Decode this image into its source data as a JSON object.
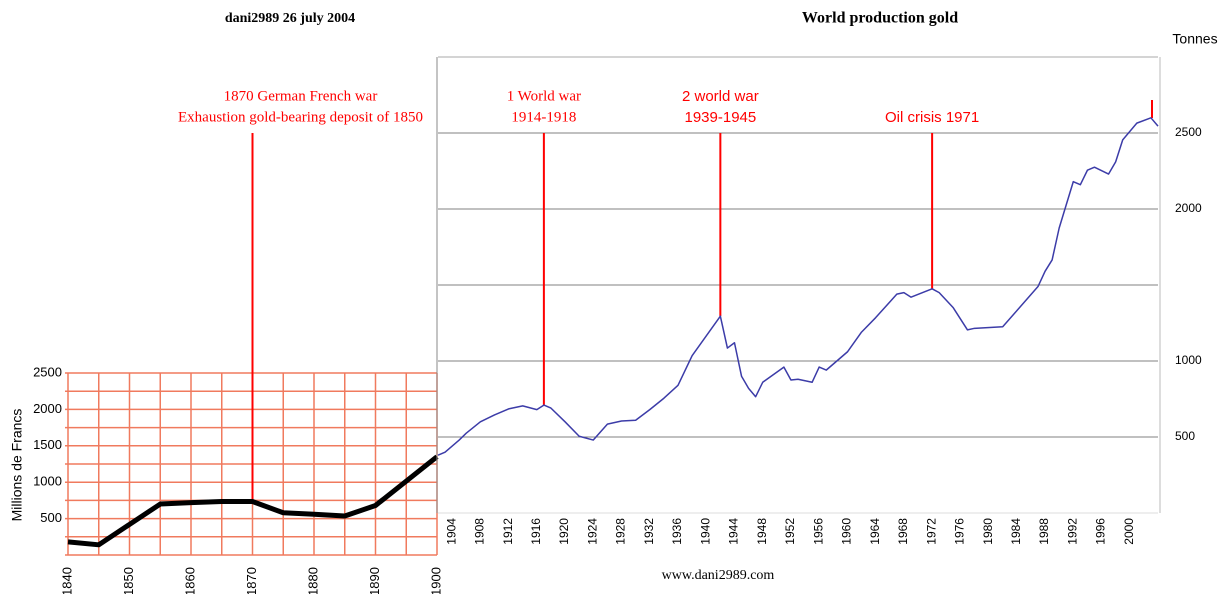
{
  "author": "dani2989  26 july 2004",
  "footer": "www.dani2989.com",
  "chart_data": [
    {
      "type": "line",
      "ylabel": "Millions de Francs",
      "x": [
        1840,
        1845,
        1850,
        1855,
        1860,
        1865,
        1870,
        1875,
        1880,
        1885,
        1890,
        1900
      ],
      "values": [
        180,
        140,
        420,
        700,
        720,
        735,
        735,
        580,
        560,
        535,
        680,
        1350
      ],
      "color": "#000000",
      "xlim": [
        1840,
        1900
      ],
      "xticks": [
        1840,
        1850,
        1860,
        1870,
        1880,
        1890,
        1900
      ],
      "ylim": [
        0,
        2500
      ],
      "yticks": [
        500,
        1000,
        1500,
        2000,
        2500
      ],
      "grid": true,
      "grid_color": "#f07a5e",
      "annotations": [
        {
          "x": 1870,
          "text": [
            "1870 German French war",
            "Exhaustion gold-bearing deposit of 1850"
          ],
          "color": "#ff0000"
        }
      ]
    },
    {
      "type": "line",
      "title": "World production gold",
      "ylabel": "Tonnes",
      "x": [
        1902,
        1903,
        1905,
        1906,
        1908,
        1910,
        1912,
        1914,
        1916,
        1917,
        1918,
        1920,
        1922,
        1924,
        1926,
        1928,
        1930,
        1932,
        1934,
        1936,
        1938,
        1942,
        1943,
        1944,
        1945,
        1946,
        1947,
        1948,
        1951,
        1952,
        1953,
        1955,
        1956,
        1957,
        1960,
        1962,
        1964,
        1967,
        1968,
        1969,
        1972,
        1973,
        1975,
        1977,
        1978,
        1982,
        1987,
        1988,
        1989,
        1990,
        1992,
        1993,
        1994,
        1995,
        1997,
        1998,
        1999,
        2001,
        2003,
        2004
      ],
      "values": [
        380,
        400,
        480,
        525,
        600,
        645,
        685,
        705,
        680,
        710,
        690,
        600,
        505,
        480,
        585,
        605,
        610,
        680,
        755,
        840,
        1035,
        1295,
        1085,
        1120,
        900,
        820,
        765,
        860,
        960,
        875,
        880,
        860,
        960,
        940,
        1060,
        1190,
        1285,
        1440,
        1450,
        1420,
        1475,
        1450,
        1350,
        1205,
        1215,
        1225,
        1490,
        1590,
        1665,
        1875,
        2180,
        2160,
        2255,
        2275,
        2230,
        2310,
        2455,
        2565,
        2600,
        2545
      ],
      "color": "#3c3ca8",
      "xlim": [
        1902,
        2004
      ],
      "xticks": [
        1904,
        1908,
        1912,
        1916,
        1920,
        1924,
        1928,
        1932,
        1936,
        1940,
        1944,
        1948,
        1952,
        1956,
        1960,
        1964,
        1968,
        1972,
        1976,
        1980,
        1984,
        1988,
        1992,
        1996,
        2000
      ],
      "ylim": [
        0,
        3000
      ],
      "yticks": [
        500,
        1000,
        {
          "value": 1500,
          "label": null
        },
        2000,
        2500
      ],
      "y_axis_side": "right",
      "grid": true,
      "grid_color": "#808080",
      "annotations": [
        {
          "x": 1917,
          "text": [
            "1 World war",
            "1914-1918"
          ],
          "color": "#ff0000"
        },
        {
          "x": 1942,
          "text": [
            "2 world war",
            "1939-1945"
          ],
          "color": "#ff0000"
        },
        {
          "x": 1972,
          "text": [
            "Oil crisis 1971"
          ],
          "color": "#ff0000"
        }
      ]
    }
  ]
}
